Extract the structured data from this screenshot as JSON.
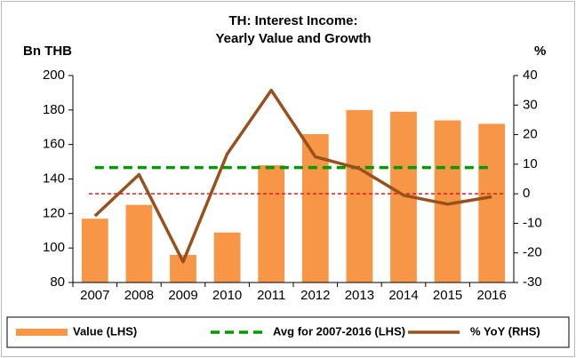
{
  "chart_data": {
    "type": "bar",
    "title": [
      "TH: Interest Income:",
      "Yearly Value and Growth"
    ],
    "y_label": "Bn THB",
    "y2_label": "%",
    "categories": [
      "2007",
      "2008",
      "2009",
      "2010",
      "2011",
      "2012",
      "2013",
      "2014",
      "2015",
      "2016"
    ],
    "series": [
      {
        "name": "Value (LHS)",
        "type": "bar",
        "color": "#f79646",
        "axis": "y",
        "values": [
          117,
          125,
          96,
          109,
          148,
          166,
          180,
          179,
          174,
          172
        ]
      },
      {
        "name": "Avg for 2007-2016 (LHS)",
        "type": "line",
        "dashed": true,
        "color": "#009a00",
        "axis": "y",
        "values": [
          146.6,
          146.6,
          146.6,
          146.6,
          146.6,
          146.6,
          146.6,
          146.6,
          146.6,
          146.6
        ]
      },
      {
        "name": "% YoY (RHS)",
        "type": "line",
        "color": "#98501d",
        "axis": "y2",
        "values": [
          -7.5,
          6.5,
          -23,
          13.5,
          35,
          12.5,
          8.5,
          -0.5,
          -3.5,
          -1
        ]
      }
    ],
    "ylim": [
      80,
      200
    ],
    "yticks": [
      80,
      100,
      120,
      140,
      160,
      180,
      200
    ],
    "y2lim": [
      -30,
      40
    ],
    "y2ticks": [
      -30,
      -20,
      -10,
      0,
      10,
      20,
      30,
      40
    ],
    "y2_zero_line": {
      "value": 0,
      "color": "#e31a1c"
    },
    "legend": "bottom"
  }
}
